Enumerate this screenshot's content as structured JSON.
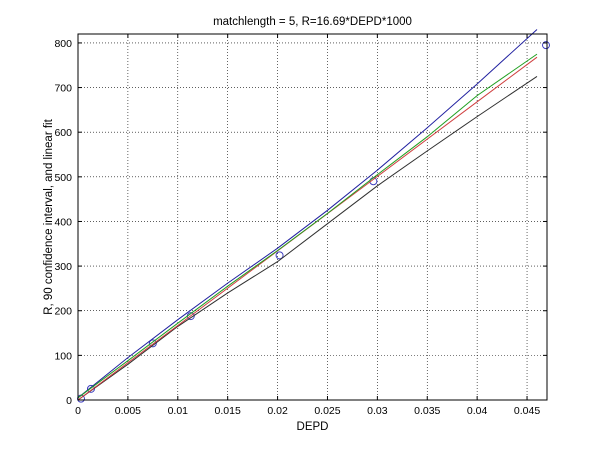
{
  "chart_data": {
    "type": "line",
    "title": "matchlength = 5, R=16.69*DEPD*1000",
    "xlabel": "DEPD",
    "ylabel": "R, 90 confidence interval, and linear fit",
    "xlim": [
      0,
      0.047
    ],
    "ylim": [
      0,
      820
    ],
    "grid": true,
    "x_ticks": [
      0,
      0.005,
      0.01,
      0.015,
      0.02,
      0.025,
      0.03,
      0.035,
      0.04,
      0.045
    ],
    "x_tick_labels": [
      "0",
      "0.005",
      "0.01",
      "0.015",
      "0.02",
      "0.025",
      "0.03",
      "0.035",
      "0.04",
      "0.045"
    ],
    "y_ticks": [
      0,
      100,
      200,
      300,
      400,
      500,
      600,
      700,
      800
    ],
    "y_tick_labels": [
      "0",
      "100",
      "200",
      "300",
      "400",
      "500",
      "600",
      "700",
      "800"
    ],
    "series": [
      {
        "kind": "scatter",
        "marker": "circle",
        "color": "#4040c0",
        "x": [
          0.0003,
          0.0013,
          0.0075,
          0.0113,
          0.0202,
          0.0296,
          0.0469
        ],
        "y": [
          3,
          25,
          127,
          188,
          324,
          490,
          795
        ]
      },
      {
        "kind": "line",
        "color": "#2020a0",
        "x": [
          0,
          0.005,
          0.01,
          0.015,
          0.02,
          0.025,
          0.03,
          0.035,
          0.04,
          0.046
        ],
        "y": [
          5,
          95,
          180,
          262,
          340,
          425,
          515,
          610,
          708,
          830
        ]
      },
      {
        "kind": "line",
        "color": "#303030",
        "x": [
          0,
          0.005,
          0.01,
          0.015,
          0.02,
          0.025,
          0.03,
          0.035,
          0.04,
          0.046
        ],
        "y": [
          0,
          80,
          165,
          240,
          310,
          395,
          480,
          558,
          635,
          725
        ]
      },
      {
        "kind": "line",
        "color": "#d04040",
        "x": [
          0,
          0.01,
          0.02,
          0.03,
          0.04,
          0.046
        ],
        "y": [
          0,
          167,
          334,
          501,
          668,
          768
        ]
      },
      {
        "kind": "line",
        "color": "#20a020",
        "x": [
          0,
          0.005,
          0.01,
          0.015,
          0.02,
          0.025,
          0.03,
          0.035,
          0.04,
          0.046
        ],
        "y": [
          5,
          88,
          172,
          255,
          335,
          418,
          505,
          590,
          682,
          775
        ]
      }
    ]
  }
}
